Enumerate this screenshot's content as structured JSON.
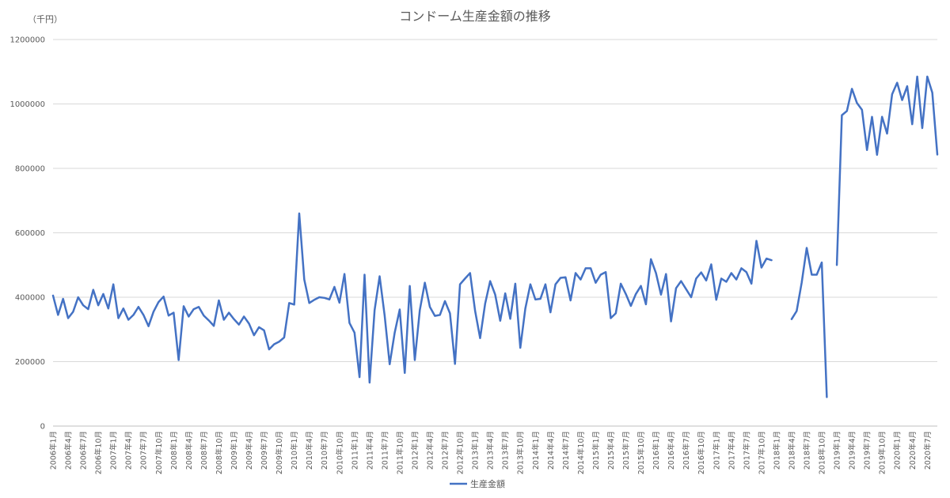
{
  "chart_data": {
    "type": "line",
    "title": "コンドーム生産金額の推移",
    "unit_label": "（千円）",
    "ylim": [
      0,
      1200000
    ],
    "yticks": [
      0,
      200000,
      400000,
      600000,
      800000,
      1000000,
      1200000
    ],
    "ytick_labels": [
      "0",
      "200000",
      "400000",
      "600000",
      "800000",
      "1000000",
      "1200000"
    ],
    "grid": true,
    "legend_position": "bottom",
    "line_color": "#4472c4",
    "start_year": 2006,
    "start_month": 1,
    "x_tick_labels": [
      "2006年1月",
      "2006年4月",
      "2006年7月",
      "2006年10月",
      "2007年1月",
      "2007年4月",
      "2007年7月",
      "2007年10月",
      "2008年1月",
      "2008年4月",
      "2008年7月",
      "2008年10月",
      "2009年1月",
      "2009年4月",
      "2009年7月",
      "2009年10月",
      "2010年1月",
      "2010年4月",
      "2010年7月",
      "2010年10月",
      "2011年1月",
      "2011年4月",
      "2011年7月",
      "2011年10月",
      "2012年1月",
      "2012年4月",
      "2012年7月",
      "2012年10月",
      "2013年1月",
      "2013年4月",
      "2013年7月",
      "2013年10月",
      "2014年1月",
      "2014年4月",
      "2014年7月",
      "2014年10月",
      "2015年1月",
      "2015年4月",
      "2015年7月",
      "2015年10月",
      "2016年1月",
      "2016年4月",
      "2016年7月",
      "2016年10月",
      "2017年1月",
      "2017年4月",
      "2017年7月",
      "2017年10月",
      "2018年1月",
      "2018年4月",
      "2018年7月",
      "2018年10月",
      "2019年1月",
      "2019年4月",
      "2019年7月",
      "2019年10月",
      "2020年1月",
      "2020年4月",
      "2020年7月"
    ],
    "series": [
      {
        "name": "生産金額",
        "values": [
          405000,
          345000,
          395000,
          335000,
          355000,
          400000,
          375000,
          363000,
          423000,
          375000,
          410000,
          365000,
          440000,
          335000,
          365000,
          330000,
          345000,
          370000,
          345000,
          310000,
          355000,
          385000,
          402000,
          343000,
          352000,
          205000,
          372000,
          340000,
          363000,
          370000,
          343000,
          328000,
          311000,
          390000,
          330000,
          352000,
          332000,
          315000,
          340000,
          318000,
          282000,
          307000,
          297000,
          238000,
          254000,
          262000,
          275000,
          382000,
          377000,
          660000,
          455000,
          382000,
          392000,
          400000,
          398000,
          393000,
          432000,
          383000,
          472000,
          320000,
          290000,
          152000,
          470000,
          135000,
          360000,
          465000,
          343000,
          192000,
          290000,
          362000,
          165000,
          435000,
          205000,
          360000,
          445000,
          370000,
          342000,
          345000,
          388000,
          350000,
          193000,
          440000,
          458000,
          475000,
          358000,
          273000,
          380000,
          450000,
          408000,
          327000,
          412000,
          333000,
          442000,
          243000,
          365000,
          440000,
          393000,
          395000,
          440000,
          353000,
          440000,
          460000,
          462000,
          390000,
          475000,
          455000,
          490000,
          490000,
          445000,
          470000,
          478000,
          335000,
          350000,
          442000,
          410000,
          373000,
          410000,
          435000,
          378000,
          518000,
          475000,
          408000,
          472000,
          325000,
          428000,
          450000,
          425000,
          400000,
          458000,
          477000,
          452000,
          502000,
          392000,
          458000,
          448000,
          475000,
          455000,
          490000,
          478000,
          442000,
          575000,
          492000,
          520000,
          515000,
          null,
          null,
          null,
          332000,
          357000,
          445000,
          553000,
          470000,
          470000,
          508000,
          90000,
          null,
          500000,
          965000,
          978000,
          1047000,
          1003000,
          982000,
          857000,
          960000,
          842000,
          960000,
          908000,
          1030000,
          1066000,
          1012000,
          1055000,
          937000,
          1085000,
          925000,
          1085000,
          1035000,
          843000
        ]
      }
    ]
  }
}
